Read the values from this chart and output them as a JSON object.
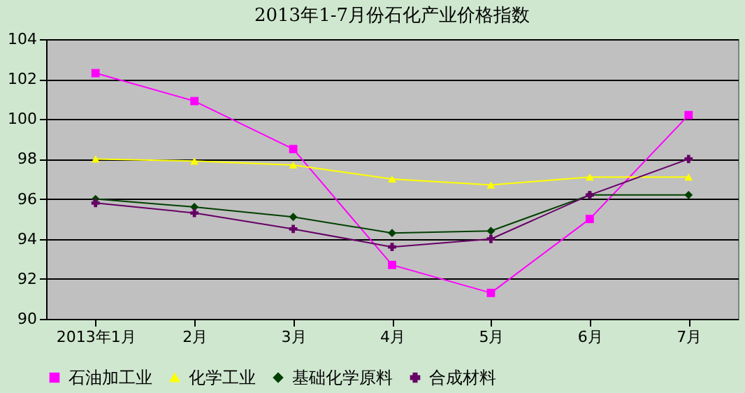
{
  "chart_data": {
    "type": "line",
    "title": "2013年1-7月份石化产业价格指数",
    "categories": [
      "2013年1月",
      "2月",
      "3月",
      "4月",
      "5月",
      "6月",
      "7月"
    ],
    "series": [
      {
        "name": "石油加工业",
        "color": "#ff00ff",
        "marker": "square",
        "values": [
          102.3,
          100.9,
          98.5,
          92.7,
          91.3,
          95.0,
          100.2
        ]
      },
      {
        "name": "化学工业",
        "color": "#ffff00",
        "marker": "triangle",
        "values": [
          98.0,
          97.9,
          97.7,
          97.0,
          96.7,
          97.1,
          97.1
        ]
      },
      {
        "name": "基础化学原料",
        "color": "#004000",
        "marker": "diamond",
        "values": [
          96.0,
          95.6,
          95.1,
          94.3,
          94.4,
          96.2,
          96.2
        ]
      },
      {
        "name": "合成材料",
        "color": "#660066",
        "marker": "cross",
        "values": [
          95.8,
          95.3,
          94.5,
          93.6,
          94.0,
          96.2,
          98.0
        ]
      }
    ],
    "ylim": [
      90,
      104
    ],
    "yticks": [
      90,
      92,
      94,
      96,
      98,
      100,
      102,
      104
    ],
    "grid": "y",
    "legend": "bottom",
    "line_style": "solid"
  }
}
